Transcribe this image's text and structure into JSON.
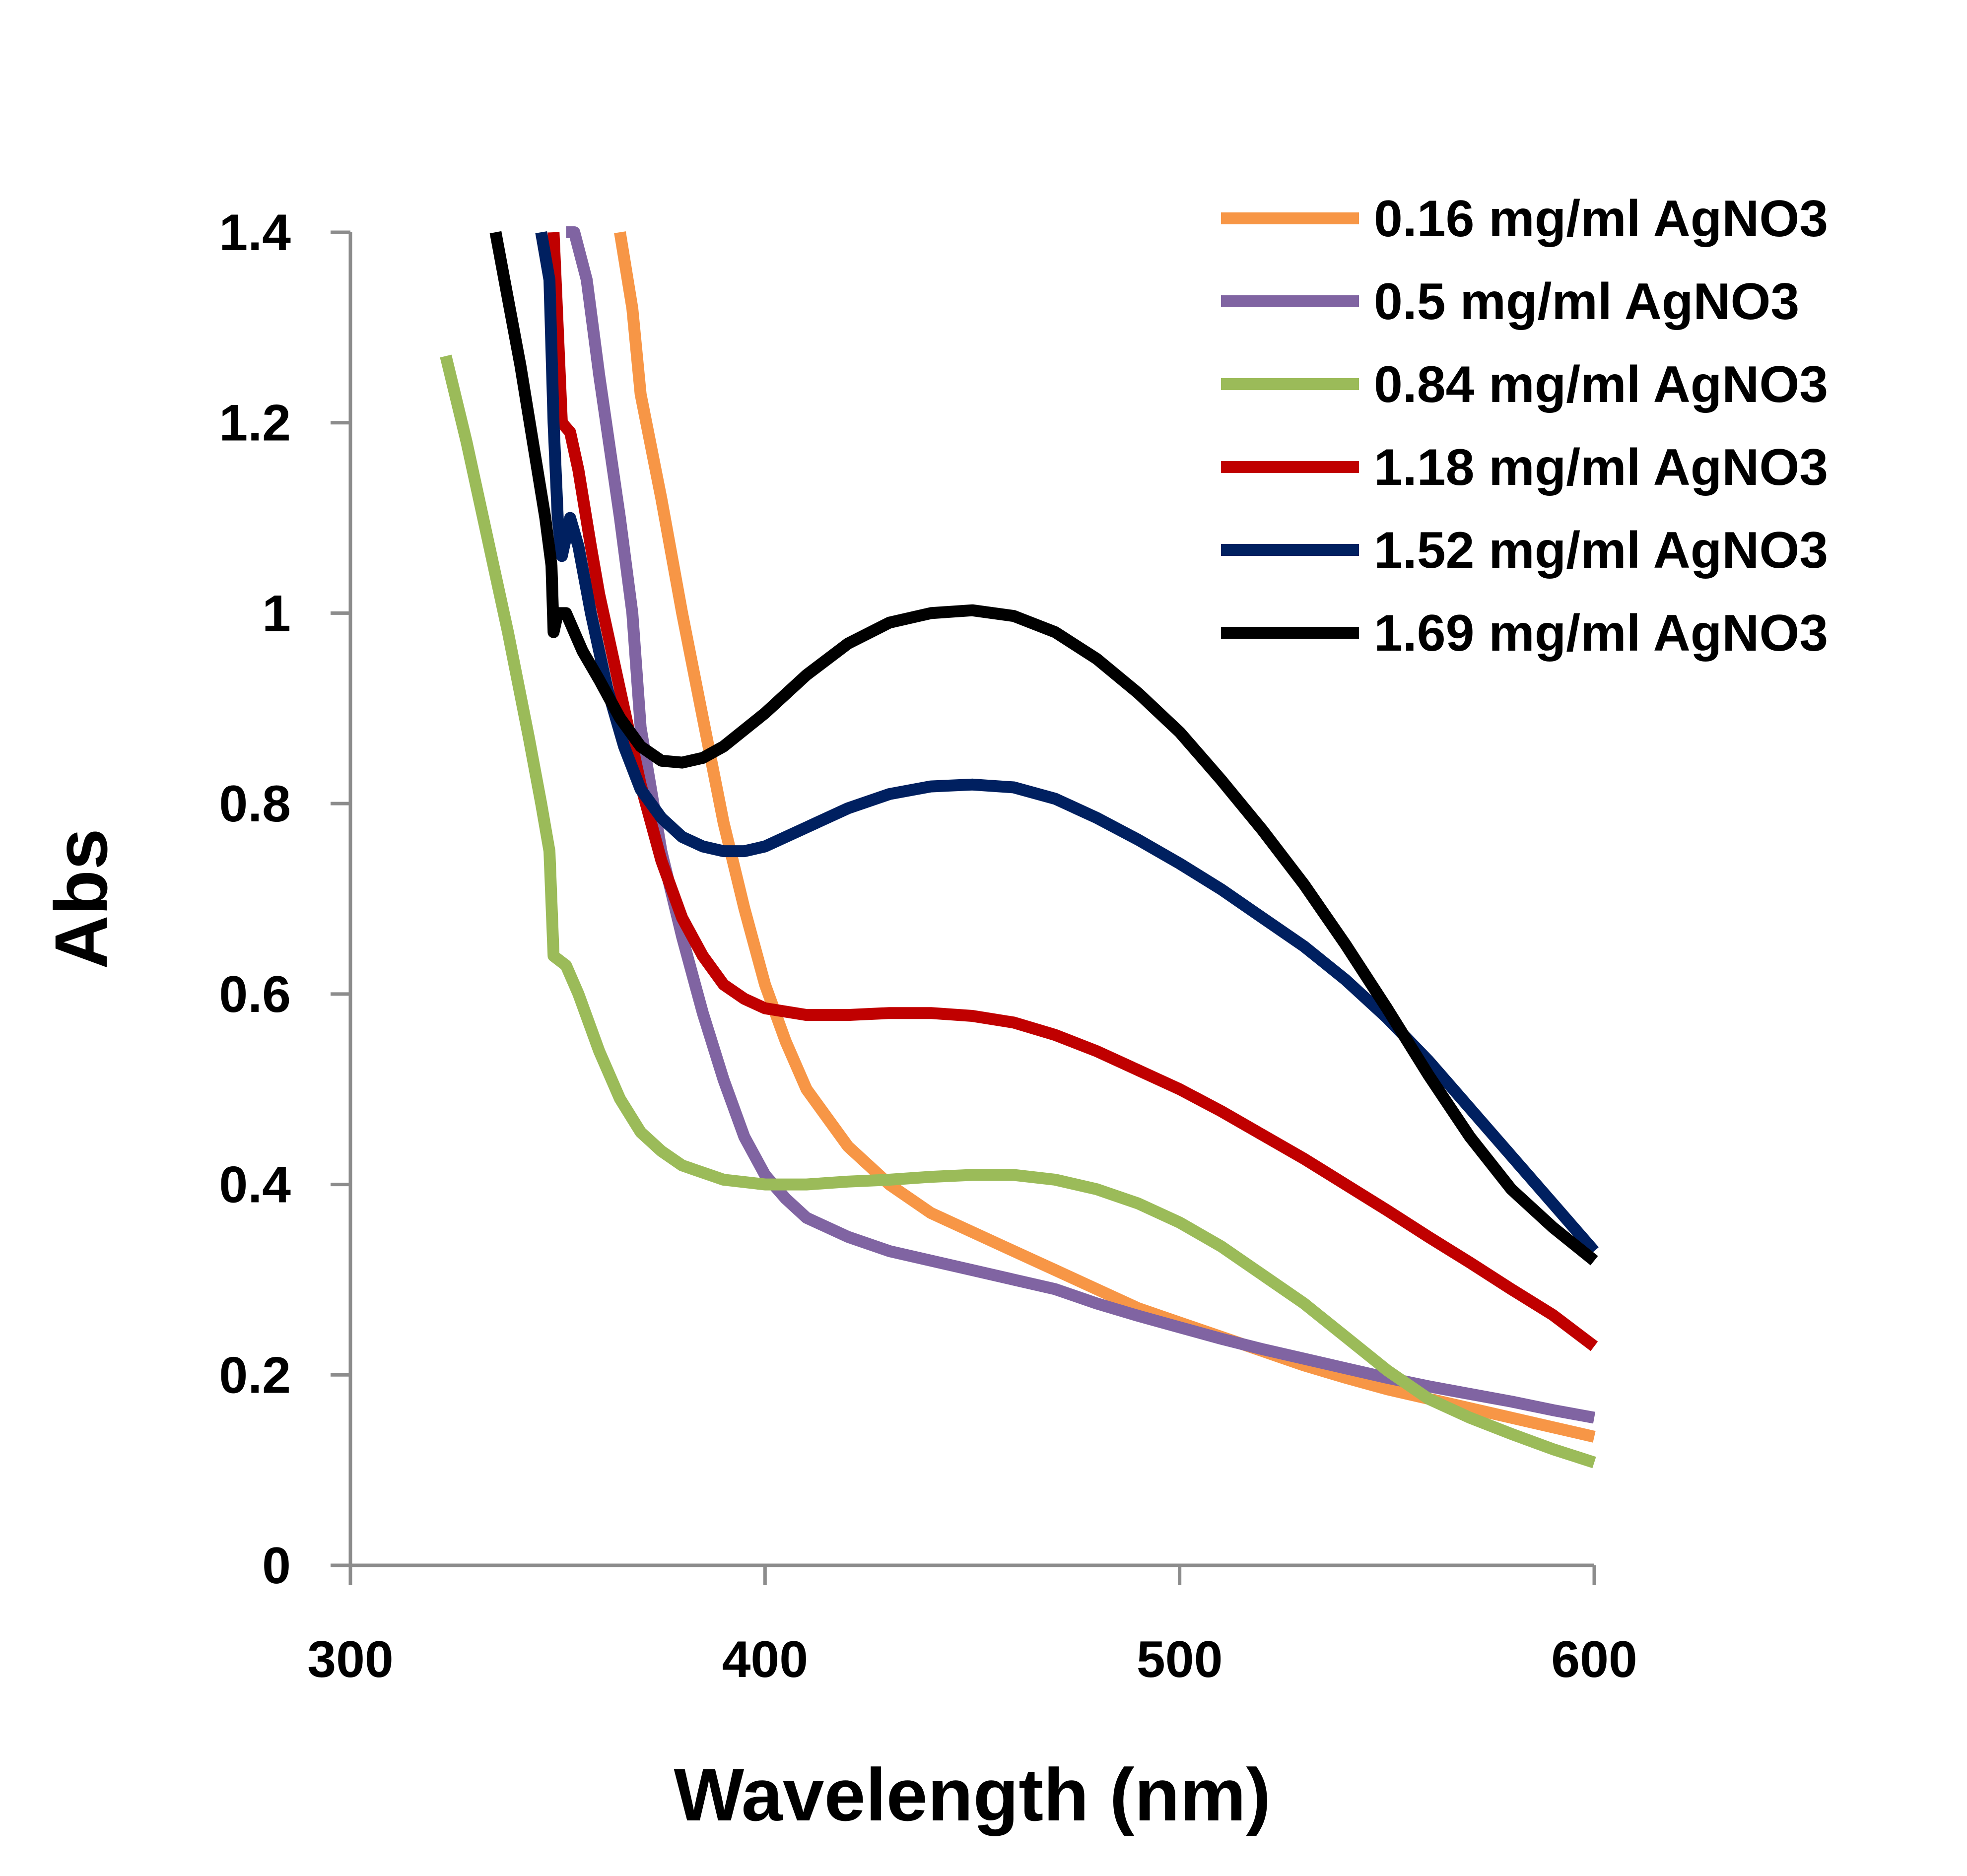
{
  "chart_data": {
    "type": "line",
    "title": "",
    "xlabel": "Wavelength (nm)",
    "ylabel": "Abs",
    "xlim": [
      300,
      600
    ],
    "ylim": [
      0,
      1.4
    ],
    "xticks": [
      300,
      400,
      500,
      600
    ],
    "xtick_labels": [
      "300",
      "400",
      "500",
      "600"
    ],
    "yticks": [
      0,
      0.2,
      0.4,
      0.6,
      0.8,
      1.0,
      1.2,
      1.4
    ],
    "ytick_labels": [
      "0",
      "0.2",
      "0.4",
      "0.6",
      "0.8",
      "1",
      "1.2",
      "1.4"
    ],
    "grid": false,
    "legend_position": "top-right",
    "series": [
      {
        "name": "0.16 mg/ml AgNO3",
        "color": "#F79646",
        "points": [
          [
            365,
            1.4
          ],
          [
            368,
            1.32
          ],
          [
            370,
            1.23
          ],
          [
            375,
            1.12
          ],
          [
            380,
            1.0
          ],
          [
            385,
            0.89
          ],
          [
            390,
            0.78
          ],
          [
            395,
            0.69
          ],
          [
            400,
            0.61
          ],
          [
            405,
            0.55
          ],
          [
            410,
            0.5
          ],
          [
            420,
            0.44
          ],
          [
            430,
            0.4
          ],
          [
            440,
            0.37
          ],
          [
            450,
            0.35
          ],
          [
            460,
            0.33
          ],
          [
            470,
            0.31
          ],
          [
            480,
            0.29
          ],
          [
            490,
            0.27
          ],
          [
            500,
            0.255
          ],
          [
            510,
            0.24
          ],
          [
            520,
            0.225
          ],
          [
            530,
            0.21
          ],
          [
            540,
            0.197
          ],
          [
            550,
            0.185
          ],
          [
            560,
            0.175
          ],
          [
            570,
            0.165
          ],
          [
            580,
            0.155
          ],
          [
            590,
            0.145
          ],
          [
            600,
            0.135
          ]
        ]
      },
      {
        "name": "0.5 mg/ml AgNO3",
        "color": "#8064A2",
        "points": [
          [
            352,
            1.4
          ],
          [
            354,
            1.4
          ],
          [
            357,
            1.35
          ],
          [
            360,
            1.25
          ],
          [
            365,
            1.1
          ],
          [
            368,
            1.0
          ],
          [
            370,
            0.88
          ],
          [
            375,
            0.75
          ],
          [
            380,
            0.66
          ],
          [
            385,
            0.58
          ],
          [
            390,
            0.51
          ],
          [
            395,
            0.45
          ],
          [
            400,
            0.41
          ],
          [
            405,
            0.385
          ],
          [
            410,
            0.365
          ],
          [
            420,
            0.345
          ],
          [
            430,
            0.33
          ],
          [
            440,
            0.32
          ],
          [
            450,
            0.31
          ],
          [
            460,
            0.3
          ],
          [
            470,
            0.29
          ],
          [
            480,
            0.275
          ],
          [
            490,
            0.262
          ],
          [
            500,
            0.25
          ],
          [
            510,
            0.238
          ],
          [
            520,
            0.227
          ],
          [
            530,
            0.217
          ],
          [
            540,
            0.207
          ],
          [
            550,
            0.197
          ],
          [
            560,
            0.188
          ],
          [
            570,
            0.18
          ],
          [
            580,
            0.172
          ],
          [
            590,
            0.163
          ],
          [
            600,
            0.155
          ]
        ]
      },
      {
        "name": "0.84 mg/ml AgNO3",
        "color": "#9BBB59",
        "points": [
          [
            323,
            1.27
          ],
          [
            328,
            1.18
          ],
          [
            333,
            1.08
          ],
          [
            338,
            0.98
          ],
          [
            343,
            0.87
          ],
          [
            346,
            0.8
          ],
          [
            348,
            0.75
          ],
          [
            349,
            0.64
          ],
          [
            352,
            0.63
          ],
          [
            355,
            0.6
          ],
          [
            360,
            0.54
          ],
          [
            365,
            0.49
          ],
          [
            370,
            0.455
          ],
          [
            375,
            0.435
          ],
          [
            380,
            0.42
          ],
          [
            390,
            0.405
          ],
          [
            400,
            0.4
          ],
          [
            410,
            0.4
          ],
          [
            420,
            0.403
          ],
          [
            430,
            0.405
          ],
          [
            440,
            0.408
          ],
          [
            450,
            0.41
          ],
          [
            460,
            0.41
          ],
          [
            470,
            0.405
          ],
          [
            480,
            0.395
          ],
          [
            490,
            0.38
          ],
          [
            500,
            0.36
          ],
          [
            510,
            0.335
          ],
          [
            520,
            0.305
          ],
          [
            530,
            0.275
          ],
          [
            540,
            0.24
          ],
          [
            550,
            0.205
          ],
          [
            560,
            0.175
          ],
          [
            570,
            0.155
          ],
          [
            580,
            0.138
          ],
          [
            590,
            0.122
          ],
          [
            600,
            0.108
          ]
        ]
      },
      {
        "name": "1.18 mg/ml AgNO3",
        "color": "#C00000",
        "points": [
          [
            349,
            1.4
          ],
          [
            350,
            1.3
          ],
          [
            351,
            1.2
          ],
          [
            353,
            1.19
          ],
          [
            355,
            1.15
          ],
          [
            358,
            1.07
          ],
          [
            360,
            1.02
          ],
          [
            363,
            0.96
          ],
          [
            366,
            0.9
          ],
          [
            370,
            0.82
          ],
          [
            375,
            0.74
          ],
          [
            380,
            0.68
          ],
          [
            385,
            0.64
          ],
          [
            390,
            0.61
          ],
          [
            395,
            0.595
          ],
          [
            400,
            0.585
          ],
          [
            410,
            0.578
          ],
          [
            420,
            0.578
          ],
          [
            430,
            0.58
          ],
          [
            440,
            0.58
          ],
          [
            450,
            0.577
          ],
          [
            460,
            0.57
          ],
          [
            470,
            0.557
          ],
          [
            480,
            0.54
          ],
          [
            490,
            0.52
          ],
          [
            500,
            0.5
          ],
          [
            510,
            0.477
          ],
          [
            520,
            0.452
          ],
          [
            530,
            0.427
          ],
          [
            540,
            0.4
          ],
          [
            550,
            0.373
          ],
          [
            560,
            0.345
          ],
          [
            570,
            0.318
          ],
          [
            580,
            0.29
          ],
          [
            590,
            0.263
          ],
          [
            600,
            0.23
          ]
        ]
      },
      {
        "name": "1.52 mg/ml AgNO3",
        "color": "#002060",
        "points": [
          [
            346,
            1.4
          ],
          [
            348,
            1.35
          ],
          [
            349,
            1.2
          ],
          [
            350,
            1.1
          ],
          [
            351,
            1.06
          ],
          [
            353,
            1.1
          ],
          [
            355,
            1.07
          ],
          [
            358,
            1.0
          ],
          [
            362,
            0.92
          ],
          [
            366,
            0.86
          ],
          [
            370,
            0.815
          ],
          [
            375,
            0.785
          ],
          [
            380,
            0.765
          ],
          [
            385,
            0.755
          ],
          [
            390,
            0.75
          ],
          [
            395,
            0.75
          ],
          [
            400,
            0.755
          ],
          [
            410,
            0.775
          ],
          [
            420,
            0.795
          ],
          [
            430,
            0.81
          ],
          [
            440,
            0.818
          ],
          [
            450,
            0.82
          ],
          [
            460,
            0.817
          ],
          [
            470,
            0.805
          ],
          [
            480,
            0.785
          ],
          [
            490,
            0.762
          ],
          [
            500,
            0.737
          ],
          [
            510,
            0.71
          ],
          [
            520,
            0.68
          ],
          [
            530,
            0.65
          ],
          [
            540,
            0.615
          ],
          [
            550,
            0.575
          ],
          [
            560,
            0.53
          ],
          [
            570,
            0.48
          ],
          [
            580,
            0.43
          ],
          [
            590,
            0.38
          ],
          [
            600,
            0.33
          ]
        ]
      },
      {
        "name": "1.69 mg/ml AgNO3",
        "color": "#000000",
        "points": [
          [
            335,
            1.4
          ],
          [
            338,
            1.33
          ],
          [
            341,
            1.26
          ],
          [
            344,
            1.18
          ],
          [
            347,
            1.1
          ],
          [
            348.5,
            1.05
          ],
          [
            349,
            0.98
          ],
          [
            350,
            1.0
          ],
          [
            352,
            1.0
          ],
          [
            354,
            0.98
          ],
          [
            356,
            0.96
          ],
          [
            360,
            0.93
          ],
          [
            365,
            0.89
          ],
          [
            370,
            0.86
          ],
          [
            375,
            0.845
          ],
          [
            380,
            0.843
          ],
          [
            385,
            0.848
          ],
          [
            390,
            0.86
          ],
          [
            400,
            0.895
          ],
          [
            410,
            0.935
          ],
          [
            420,
            0.968
          ],
          [
            430,
            0.99
          ],
          [
            440,
            1.0
          ],
          [
            450,
            1.003
          ],
          [
            460,
            0.997
          ],
          [
            470,
            0.98
          ],
          [
            480,
            0.952
          ],
          [
            490,
            0.916
          ],
          [
            500,
            0.875
          ],
          [
            510,
            0.825
          ],
          [
            520,
            0.772
          ],
          [
            530,
            0.715
          ],
          [
            540,
            0.652
          ],
          [
            550,
            0.585
          ],
          [
            560,
            0.515
          ],
          [
            570,
            0.45
          ],
          [
            580,
            0.395
          ],
          [
            590,
            0.355
          ],
          [
            600,
            0.32
          ]
        ]
      }
    ]
  }
}
